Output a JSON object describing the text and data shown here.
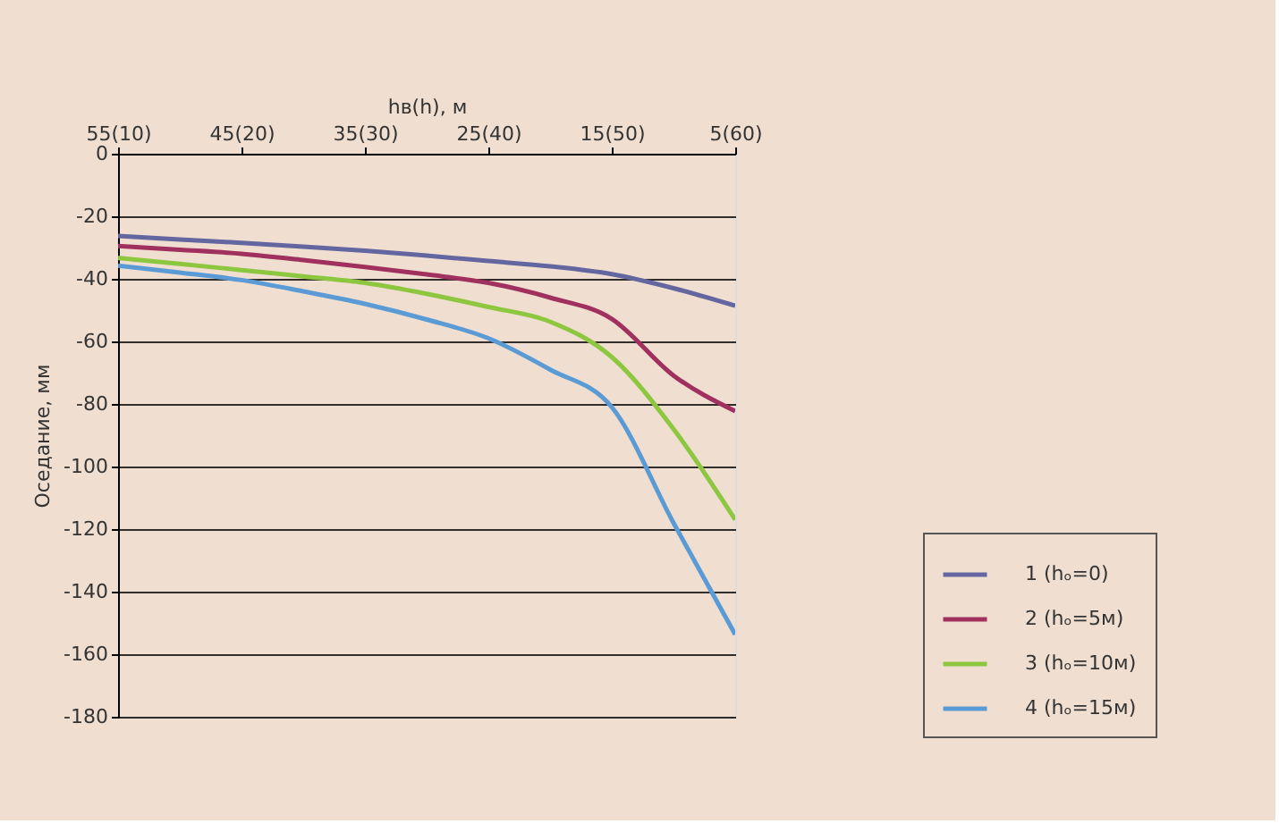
{
  "chart_data": {
    "type": "line",
    "xlabel": "hв(h), м",
    "ylabel": "Оседание, мм",
    "categories": [
      "55(10)",
      null,
      "45(20)",
      null,
      "35(30)",
      null,
      "25(40)",
      null,
      "15(50)",
      null,
      "5(60)"
    ],
    "ylim": [
      -180,
      0
    ],
    "yticks": [
      0,
      -20,
      -40,
      -60,
      -80,
      -100,
      -120,
      -140,
      -160,
      -180
    ],
    "grid": "y",
    "legend": "bottom right",
    "line_style": "solid",
    "series": [
      {
        "name": "1 (hₒ=0)",
        "color": "#6466a0",
        "values": [
          -26.3,
          -27.4,
          -28.5,
          -29.7,
          -31,
          -32.6,
          -34.3,
          -36,
          -38.5,
          -43,
          -48.6
        ]
      },
      {
        "name": "2 (hₒ=5м)",
        "color": "#a0305e",
        "values": [
          -29.5,
          -30.7,
          -32,
          -34,
          -36.2,
          -38.6,
          -41.3,
          -46,
          -52.8,
          -70.9,
          -82.3
        ]
      },
      {
        "name": "3 (hₒ=10м)",
        "color": "#8dc63f",
        "values": [
          -33.3,
          -35.2,
          -37.2,
          -39.2,
          -41.3,
          -44.8,
          -49,
          -53.7,
          -65,
          -88,
          -117
        ]
      },
      {
        "name": "4 (hₒ=15м)",
        "color": "#5b9bd5",
        "values": [
          -35.8,
          -38,
          -40.4,
          -44,
          -48,
          -53,
          -59,
          -69,
          -81,
          -118,
          -153.7
        ]
      }
    ]
  }
}
